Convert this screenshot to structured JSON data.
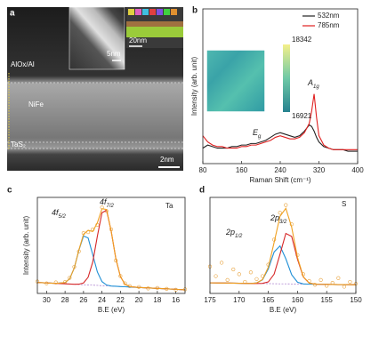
{
  "panel_a": {
    "label": "a",
    "layers": [
      "AlOx/Al",
      "NiFe",
      "TaS₂"
    ],
    "scale_bar": "2nm",
    "inset_scale_bars": [
      "5nm",
      "20nm"
    ]
  },
  "chart_data": [
    {
      "type": "line",
      "label": "b",
      "xlabel": "Raman Shift (cm⁻¹)",
      "ylabel": "Intensity (arb. unit)",
      "x": [
        80,
        90,
        100,
        110,
        120,
        130,
        140,
        150,
        160,
        170,
        180,
        190,
        200,
        210,
        220,
        230,
        240,
        250,
        260,
        270,
        280,
        290,
        300,
        305,
        310,
        315,
        320,
        330,
        340,
        350,
        360,
        370,
        380,
        390,
        400
      ],
      "xlim": [
        80,
        400
      ],
      "xticks": [
        80,
        160,
        240,
        320,
        400
      ],
      "ylim": [
        0,
        100
      ],
      "legend": "upper right",
      "series": [
        {
          "name": "532nm",
          "color": "#222222",
          "mode": "line",
          "values": [
            10,
            12,
            11,
            10,
            10,
            10,
            11,
            11,
            12,
            12,
            13,
            13,
            14,
            15,
            17,
            19,
            20,
            19,
            18,
            17,
            18,
            21,
            25,
            24,
            21,
            17,
            14,
            11,
            10,
            9,
            9,
            9,
            8,
            8,
            8
          ]
        },
        {
          "name": "785nm",
          "color": "#e02020",
          "mode": "line",
          "values": [
            18,
            14,
            12,
            11,
            11,
            10,
            10,
            10,
            11,
            11,
            12,
            12,
            13,
            14,
            15,
            17,
            18,
            17,
            16,
            16,
            17,
            20,
            26,
            34,
            45,
            30,
            18,
            12,
            10,
            9,
            9,
            9,
            9,
            9,
            9
          ]
        }
      ],
      "annotations": [
        {
          "text": "A",
          "sub": "1g"
        },
        {
          "text": "E",
          "sub": "g"
        }
      ],
      "colorbar": {
        "max": 18342,
        "min": 16921
      }
    },
    {
      "type": "line",
      "label": "c",
      "xlabel": "B.E (eV)",
      "ylabel": "Intensity (arb. unit)",
      "element": "Ta",
      "x": [
        31,
        30,
        29,
        28,
        27.5,
        27,
        26.5,
        26,
        25.5,
        25,
        24.5,
        24,
        23.5,
        23,
        22.5,
        22,
        21.5,
        21,
        20,
        19,
        18,
        17,
        16,
        15
      ],
      "xlim": [
        31,
        15
      ],
      "xticks": [
        30,
        28,
        26,
        24,
        22,
        20,
        18,
        16
      ],
      "ylim": [
        0,
        105
      ],
      "series": [
        {
          "color": "#e8a33d",
          "mode": "markers",
          "values": [
            13,
            11,
            12,
            12.5,
            17,
            29,
            46,
            66,
            67,
            70,
            75,
            94,
            90,
            70,
            36,
            19,
            11,
            8,
            7,
            5.5,
            6,
            5,
            4,
            4.5
          ]
        },
        {
          "color": "#a070c8",
          "mode": "line",
          "dash": true,
          "values": [
            12,
            11.5,
            11,
            10.5,
            10.3,
            10,
            9.8,
            9.5,
            9.3,
            9,
            8.8,
            8.5,
            8.3,
            8,
            7.8,
            7.5,
            7.3,
            7,
            6.5,
            6,
            5.5,
            5,
            4.5,
            4
          ]
        },
        {
          "color": "#1f8fd6",
          "mode": "line",
          "values": [
            12,
            11.5,
            11,
            11.8,
            16,
            27.9,
            47.3,
            62.8,
            60.6,
            42.4,
            23.5,
            12.9,
            9.2,
            8.1,
            7.8,
            7.5,
            7.3,
            7,
            6.5,
            6,
            5.5,
            5,
            4.5,
            4
          ]
        },
        {
          "color": "#d62728",
          "mode": "line",
          "values": [
            12,
            11.5,
            11,
            10.5,
            10.3,
            10,
            10.1,
            11.4,
            17.7,
            34.3,
            62.6,
            88.2,
            90.9,
            67.9,
            38.2,
            18.3,
            10,
            7.5,
            6.5,
            6,
            5.5,
            5,
            4.5,
            4
          ]
        },
        {
          "color": "#f0a020",
          "mode": "line",
          "values": [
            12,
            11.5,
            11,
            11.8,
            16,
            27.9,
            47.6,
            64.7,
            69,
            67.7,
            77.3,
            92.6,
            91.8,
            68,
            38.2,
            18.3,
            10,
            7.5,
            6.5,
            6,
            5.5,
            5,
            4.5,
            4
          ]
        }
      ],
      "annotations": [
        {
          "text": "4f",
          "sub": "5/2"
        },
        {
          "text": "4f",
          "sub": "7/2"
        }
      ]
    },
    {
      "type": "line",
      "label": "d",
      "xlabel": "B.E (eV)",
      "element": "S",
      "x": [
        175,
        174,
        173,
        172,
        171,
        170,
        169,
        168,
        167,
        166,
        165,
        164,
        163,
        162,
        161,
        160,
        159,
        158,
        157,
        156,
        155,
        154,
        153,
        152,
        151,
        150
      ],
      "xlim": [
        175,
        150
      ],
      "xticks": [
        175,
        170,
        165,
        160,
        155,
        150
      ],
      "ylim": [
        0,
        100
      ],
      "series": [
        {
          "color": "#e8a33d",
          "mode": "markers",
          "values": [
            28,
            18,
            32,
            14,
            25,
            20,
            12,
            22,
            15,
            18,
            30,
            56,
            84,
            92,
            72,
            40,
            20,
            13,
            9,
            14,
            8,
            11,
            16,
            7,
            12,
            10
          ]
        },
        {
          "color": "#a070c8",
          "mode": "line",
          "dash": true,
          "values": [
            11,
            10.9,
            10.8,
            10.8,
            10.7,
            10.6,
            10.5,
            10.4,
            10.4,
            10.3,
            10.2,
            10.1,
            10,
            10,
            9.9,
            9.8,
            9.7,
            9.6,
            9.6,
            9.5,
            9.4,
            9.3,
            9.2,
            9.2,
            9.1,
            9
          ]
        },
        {
          "color": "#1f8fd6",
          "mode": "line",
          "values": [
            11,
            10.9,
            10.8,
            10.8,
            10.7,
            10.6,
            10.5,
            10.4,
            10.9,
            14.2,
            25.5,
            43.2,
            49.5,
            36.1,
            19.5,
            11.7,
            9.9,
            9.6,
            9.6,
            9.5,
            9.4,
            9.3,
            9.2,
            9.2,
            9.1,
            9
          ]
        },
        {
          "color": "#d62728",
          "mode": "line",
          "values": [
            11,
            10.9,
            10.8,
            10.8,
            10.7,
            10.6,
            10.5,
            10.4,
            10.4,
            10.5,
            12,
            20.1,
            40.8,
            62.5,
            59.4,
            35.6,
            17.1,
            10.8,
            9.7,
            9.5,
            9.4,
            9.3,
            9.2,
            9.2,
            9.1,
            9
          ]
        },
        {
          "color": "#f0a020",
          "mode": "line",
          "values": [
            11,
            10.9,
            10.8,
            10.8,
            10.7,
            10.6,
            10.5,
            10.4,
            10.9,
            14.4,
            27.3,
            53.2,
            80.3,
            88.6,
            69,
            37.5,
            17.3,
            10.8,
            9.7,
            9.5,
            9.4,
            9.3,
            9.2,
            9.2,
            9.1,
            9
          ]
        }
      ],
      "annotations": [
        {
          "text": "2p",
          "sub": "1/2"
        },
        {
          "text": "2p",
          "sub": "3/2"
        }
      ]
    }
  ]
}
